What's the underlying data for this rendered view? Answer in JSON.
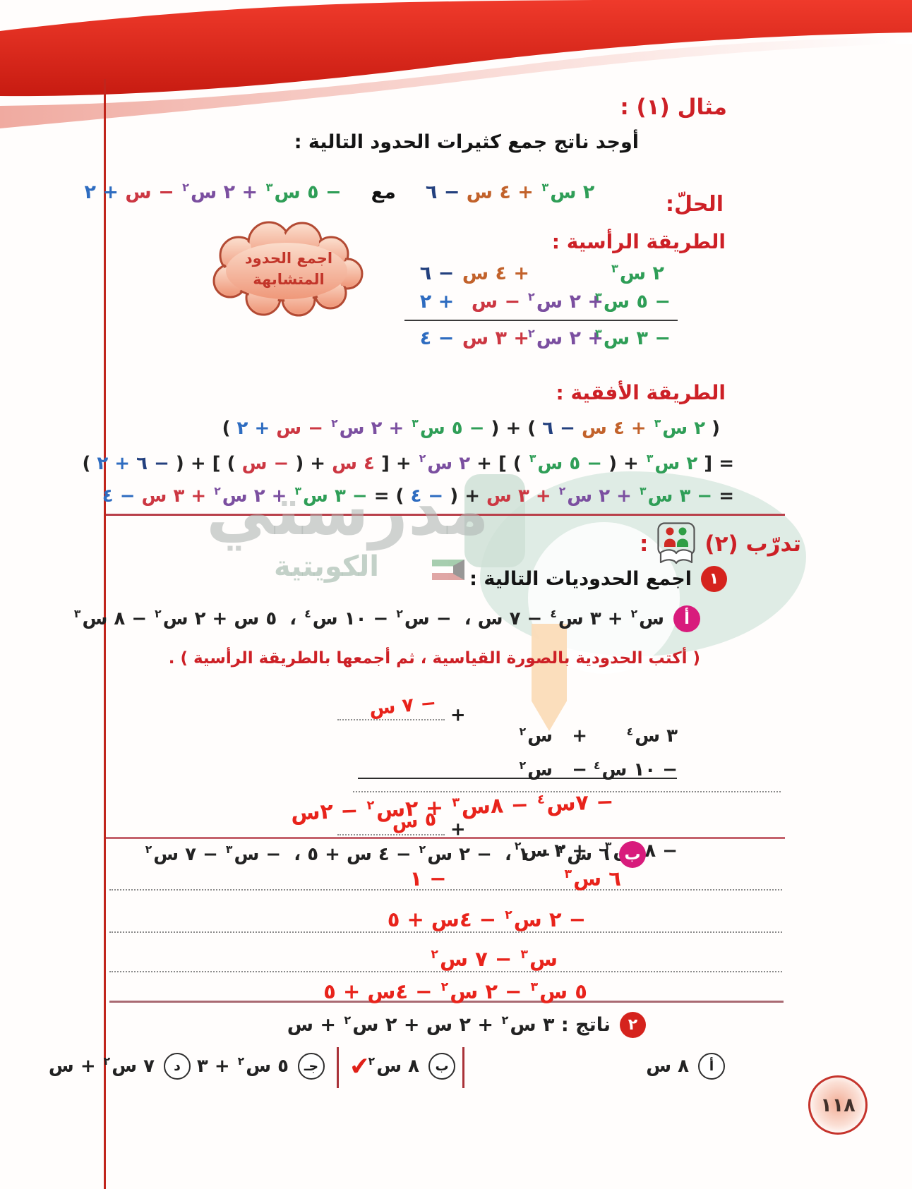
{
  "page_number": "١١٨",
  "watermark": {
    "brand": "مدرستي",
    "sub": "الكويتية"
  },
  "example": {
    "title": "مثال (١) :",
    "prompt": "أوجد ناتج جمع كثيرات الحدود التالية :",
    "expr1": [
      {
        "t": "٢ س",
        "s": "٣",
        "c": "green"
      },
      {
        "t": " + ٤ س",
        "c": "orange"
      },
      {
        "t": " − ٦",
        "c": "navy"
      }
    ],
    "with_label": "مع",
    "expr2": [
      {
        "t": "− ٥ س",
        "s": "٣",
        "c": "green"
      },
      {
        "t": " + ٢ س",
        "s": "٢",
        "c": "purple"
      },
      {
        "t": " − س",
        "c": "red"
      },
      {
        "t": " + ٢",
        "c": "blue"
      }
    ],
    "solution_label": "الحلّ:",
    "vertical_method_label": "الطريقة الرأسية :",
    "cloud_line1": "اجمع الحدود",
    "cloud_line2": "المتشابهة",
    "vertical_rows": [
      [
        [
          {
            "t": "٢ س",
            "s": "٣",
            "c": "green"
          }
        ],
        [],
        [
          {
            "t": "+ ٤ س",
            "c": "orange"
          }
        ],
        [
          {
            "t": "− ٦",
            "c": "navy"
          }
        ]
      ],
      [
        [
          {
            "t": "− ٥ س",
            "s": "٣",
            "c": "green"
          }
        ],
        [
          {
            "t": "+ ٢ س",
            "s": "٢",
            "c": "purple"
          }
        ],
        [
          {
            "t": "− س",
            "c": "red"
          }
        ],
        [
          {
            "t": "+ ٢",
            "c": "blue"
          }
        ]
      ],
      [
        [
          {
            "t": "− ٣ س",
            "s": "٣",
            "c": "green"
          }
        ],
        [
          {
            "t": "+ ٢ س",
            "s": "٢",
            "c": "purple"
          }
        ],
        [
          {
            "t": "+ ٣ س",
            "c": "red"
          }
        ],
        [
          {
            "t": "− ٤",
            "c": "blue"
          }
        ]
      ]
    ],
    "horizontal_method_label": "الطريقة الأفقية :",
    "h_line1": [
      {
        "t": "( ",
        "c": "black"
      },
      {
        "t": "٢ س",
        "s": "٣",
        "c": "green"
      },
      {
        "t": " + ٤ س",
        "c": "orange"
      },
      {
        "t": " − ٦",
        "c": "navy"
      },
      {
        "t": " ) + ( ",
        "c": "black"
      },
      {
        "t": "− ٥ س",
        "s": "٣",
        "c": "green"
      },
      {
        "t": " + ٢ س",
        "s": "٢",
        "c": "purple"
      },
      {
        "t": " − س",
        "c": "red"
      },
      {
        "t": " + ٢",
        "c": "blue"
      },
      {
        "t": " )",
        "c": "black"
      }
    ],
    "h_line2": [
      {
        "t": "= [ ",
        "c": "black"
      },
      {
        "t": "٢ س",
        "s": "٣",
        "c": "green"
      },
      {
        "t": " + ( ",
        "c": "black"
      },
      {
        "t": "− ٥ س",
        "s": "٣",
        "c": "green"
      },
      {
        "t": " ) ] + ",
        "c": "black"
      },
      {
        "t": "٢ س",
        "s": "٢",
        "c": "purple"
      },
      {
        "t": " + [ ",
        "c": "black"
      },
      {
        "t": "٤ س",
        "c": "red"
      },
      {
        "t": " + ( ",
        "c": "black"
      },
      {
        "t": "− س",
        "c": "red"
      },
      {
        "t": " ) ] + ( ",
        "c": "black"
      },
      {
        "t": "− ٦",
        "c": "navy"
      },
      {
        "t": " + ٢",
        "c": "blue"
      },
      {
        "t": " )",
        "c": "black"
      }
    ],
    "h_line3": [
      {
        "t": "= ",
        "c": "black"
      },
      {
        "t": "− ٣ س",
        "s": "٣",
        "c": "green"
      },
      {
        "t": " + ٢ س",
        "s": "٢",
        "c": "purple"
      },
      {
        "t": " + ٣ س",
        "c": "red"
      },
      {
        "t": " + ( ",
        "c": "black"
      },
      {
        "t": "− ٤",
        "c": "blue"
      },
      {
        "t": " ) = ",
        "c": "black"
      },
      {
        "t": "− ٣ س",
        "s": "٣",
        "c": "green"
      },
      {
        "t": " + ٢ س",
        "s": "٢",
        "c": "purple"
      },
      {
        "t": " + ٣ س",
        "c": "red"
      },
      {
        "t": " − ٤",
        "c": "blue"
      }
    ]
  },
  "practice": {
    "title": "تدرّب (٢)",
    "title_colon": ":",
    "q1_number": "١",
    "q1_text": "اجمع الحدوديات التالية :",
    "part_a_badge": "أ",
    "part_a_expr": [
      {
        "t": "س",
        "s": "٢",
        "c": "black"
      },
      {
        "t": " + ٣ س",
        "s": "٤",
        "c": "black"
      },
      {
        "t": " − ٧ س ،  − س",
        "s": "٢",
        "c": "black"
      },
      {
        "t": " − ١٠ س",
        "s": "٤",
        "c": "black"
      },
      {
        "t": " ،  ٥ س + ٢ س",
        "s": "٢",
        "c": "black"
      },
      {
        "t": " − ٨ س",
        "s": "٣",
        "c": "black"
      }
    ],
    "part_a_note": "( أكتب الحدودية بالصورة القياسية ، ثم أجمعها بالطريقة الرأسية ) .",
    "plus": "+",
    "w_rows": [
      [
        [
          {
            "t": "٣ س",
            "s": "٤",
            "c": "black"
          }
        ],
        [
          {
            "t": "+   س",
            "s": "٢",
            "c": "black"
          }
        ]
      ],
      [
        [
          {
            "t": "− ١٠ س",
            "s": "٤",
            "c": "black"
          }
        ],
        [
          {
            "t": "−   س",
            "s": "٢",
            "c": "black"
          }
        ]
      ],
      [
        [
          {
            "t": "− ٨ س",
            "s": "٣",
            "c": "black"
          }
        ],
        [
          {
            "t": "+ ٢ س",
            "s": "٢",
            "c": "black"
          }
        ]
      ]
    ],
    "work_hand1": [
      {
        "t": "− ٧ س",
        "c": "hand"
      }
    ],
    "work_hand2": [
      {
        "t": "٥ س",
        "c": "hand"
      }
    ],
    "answer_a": [
      {
        "t": "− ٧س",
        "s": "٤",
        "c": "hand"
      },
      {
        "t": " − ٨س",
        "s": "٣",
        "c": "hand"
      },
      {
        "t": " + ٢س",
        "s": "٢",
        "c": "hand"
      },
      {
        "t": " − ٢س",
        "c": "hand"
      }
    ],
    "part_b_badge": "ب",
    "part_b_expr": [
      {
        "t": "٦ س",
        "s": "٣",
        "c": "black"
      },
      {
        "t": " − ١ ،  − ٢ س",
        "s": "٢",
        "c": "black"
      },
      {
        "t": " − ٤ س + ٥ ،  − س",
        "s": "٣",
        "c": "black"
      },
      {
        "t": " − ٧ س",
        "s": "٢",
        "c": "black"
      }
    ],
    "hand_b1": [
      {
        "t": "٦ س",
        "s": "٣",
        "c": "hand"
      },
      {
        "gap": 165
      },
      {
        "t": "− ١",
        "c": "hand"
      }
    ],
    "hand_b2": [
      {
        "t": "− ٢ س",
        "s": "٢",
        "c": "hand"
      },
      {
        "t": " − ٤س + ٥",
        "c": "hand"
      }
    ],
    "hand_b3": [
      {
        "t": "س",
        "s": "٣",
        "c": "hand"
      },
      {
        "t": " − ٧ س",
        "s": "٢",
        "c": "hand"
      }
    ],
    "hand_b4": [
      {
        "t": "٥ س",
        "s": "٣",
        "c": "hand"
      },
      {
        "t": " − ٢ س",
        "s": "٢",
        "c": "hand"
      },
      {
        "t": " − ٤س + ٥",
        "c": "hand"
      }
    ],
    "q2_number": "٢",
    "q2_text": [
      {
        "t": "ناتج : ٣ س",
        "s": "٢",
        "c": "black"
      },
      {
        "t": " + ٢ س + ٢ س",
        "s": "٢",
        "c": "black"
      },
      {
        "t": " + س",
        "c": "black"
      }
    ],
    "checkmark": "✔",
    "options": [
      {
        "badge": "أ",
        "expr": [
          {
            "t": "٨ س",
            "c": "black"
          }
        ]
      },
      {
        "badge": "ب",
        "expr": [
          {
            "t": "٨ س",
            "s": "٢",
            "c": "black"
          }
        ]
      },
      {
        "badge": "جـ",
        "expr": [
          {
            "t": "٥ س",
            "s": "٢",
            "c": "black"
          },
          {
            "t": " + ٣ س",
            "c": "black"
          }
        ]
      },
      {
        "badge": "د",
        "expr": [
          {
            "t": "٧ س",
            "s": "٢",
            "c": "black"
          },
          {
            "t": " + س",
            "c": "black"
          }
        ]
      }
    ]
  }
}
